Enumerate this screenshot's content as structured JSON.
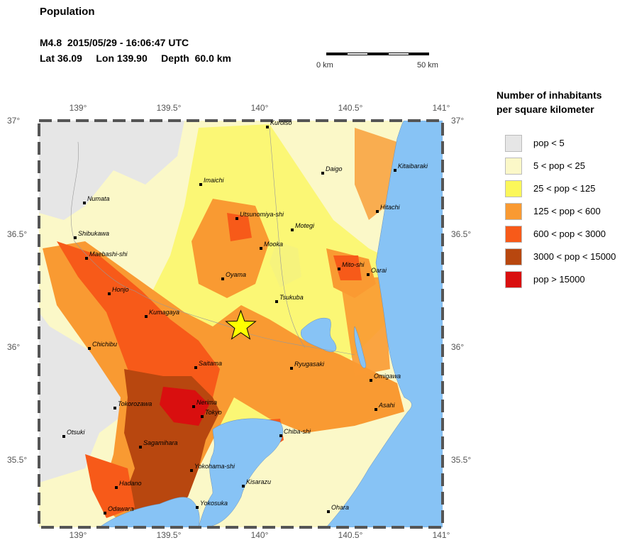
{
  "header": {
    "title": "Population",
    "line1": "M4.8  2015/05/29 - 16:06:47 UTC",
    "line2": "Lat 36.09     Lon 139.90     Depth  60.0 km"
  },
  "scale_bar": {
    "left_label": "0 km",
    "right_label": "50 km"
  },
  "map": {
    "lon_ticks": [
      "139°",
      "139.5°",
      "140°",
      "140.5°",
      "141°"
    ],
    "lat_ticks": [
      "37°",
      "36.5°",
      "36°",
      "35.5°"
    ],
    "epicenter": {
      "lat": 36.09,
      "lon": 139.9
    },
    "colors": {
      "sea": "#87c3f5",
      "epicenter_star": "#ffff00"
    },
    "cities": [
      "Kuroiso",
      "Daigo",
      "Kitaibaraki",
      "Imaichi",
      "Numata",
      "Hitachi",
      "Utsunomiya-shi",
      "Motegi",
      "Shibukawa",
      "Mooka",
      "Maebashi-shi",
      "Mito-shi",
      "Oyama",
      "Oarai",
      "Honjo",
      "Tsukuba",
      "Kumagaya",
      "Chichibu",
      "Ryugasaki",
      "Saitama",
      "Omigawa",
      "Tokorozawa",
      "Asahi",
      "Nerima",
      "Tokyo",
      "Otsuki",
      "Chiba-shi",
      "Sagamihara",
      "Yokohama-shi",
      "Hadano",
      "Kisarazu",
      "Yokosuka",
      "Odawara",
      "Ohara"
    ]
  },
  "legend": {
    "title_line1": "Number of inhabitants",
    "title_line2": "per square kilometer",
    "items": [
      {
        "label": "pop < 5",
        "color": "#e6e6e6"
      },
      {
        "label": "5 < pop < 25",
        "color": "#fbf8c8"
      },
      {
        "label": "25 < pop < 125",
        "color": "#fbf75a"
      },
      {
        "label": "125 < pop < 600",
        "color": "#f99a32"
      },
      {
        "label": "600 < pop < 3000",
        "color": "#f75a19"
      },
      {
        "label": "3000 < pop < 15000",
        "color": "#b8470f"
      },
      {
        "label": "pop > 15000",
        "color": "#d90f0f"
      }
    ]
  }
}
